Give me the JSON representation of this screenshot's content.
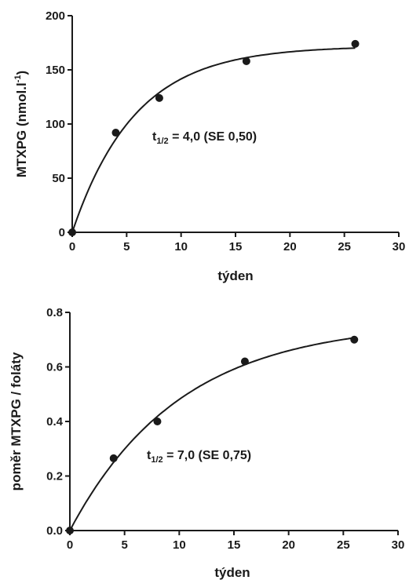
{
  "chart_data": [
    {
      "type": "scatter",
      "x": [
        0,
        4,
        8,
        16,
        26
      ],
      "y": [
        0,
        92,
        124,
        158,
        174
      ],
      "fit": {
        "model": "one-phase association",
        "plateau": 172,
        "half_life": 4.0
      },
      "xlabel": "týden",
      "ylabel": "MTXPG (nmol.l-1)",
      "ylabel_parts": {
        "main": "MTXPG (nmol.l",
        "sup": "-1",
        "end": ")"
      },
      "annotation": {
        "prefix": "t",
        "sub": "1/2",
        "text": " = 4,0 (SE 0,50)"
      },
      "xlim": [
        0,
        30
      ],
      "ylim": [
        0,
        200
      ],
      "xticks": [
        "0",
        "5",
        "10",
        "15",
        "20",
        "25",
        "30"
      ],
      "yticks": [
        "0",
        "50",
        "100",
        "150",
        "200"
      ],
      "grid": false
    },
    {
      "type": "scatter",
      "x": [
        0,
        4,
        8,
        16,
        26
      ],
      "y": [
        0,
        0.265,
        0.4,
        0.62,
        0.7
      ],
      "fit": {
        "model": "one-phase association",
        "plateau": 0.765,
        "half_life": 7.0
      },
      "xlabel": "týden",
      "ylabel": "poměr MTXPG / foláty",
      "annotation": {
        "prefix": "t",
        "sub": "1/2",
        "text": " = 7,0 (SE 0,75)"
      },
      "xlim": [
        0,
        30
      ],
      "ylim": [
        0,
        0.8
      ],
      "xticks": [
        "0",
        "5",
        "10",
        "15",
        "20",
        "25",
        "30"
      ],
      "yticks": [
        "0.0",
        "0.2",
        "0.4",
        "0.6",
        "0.8"
      ],
      "grid": false
    }
  ]
}
